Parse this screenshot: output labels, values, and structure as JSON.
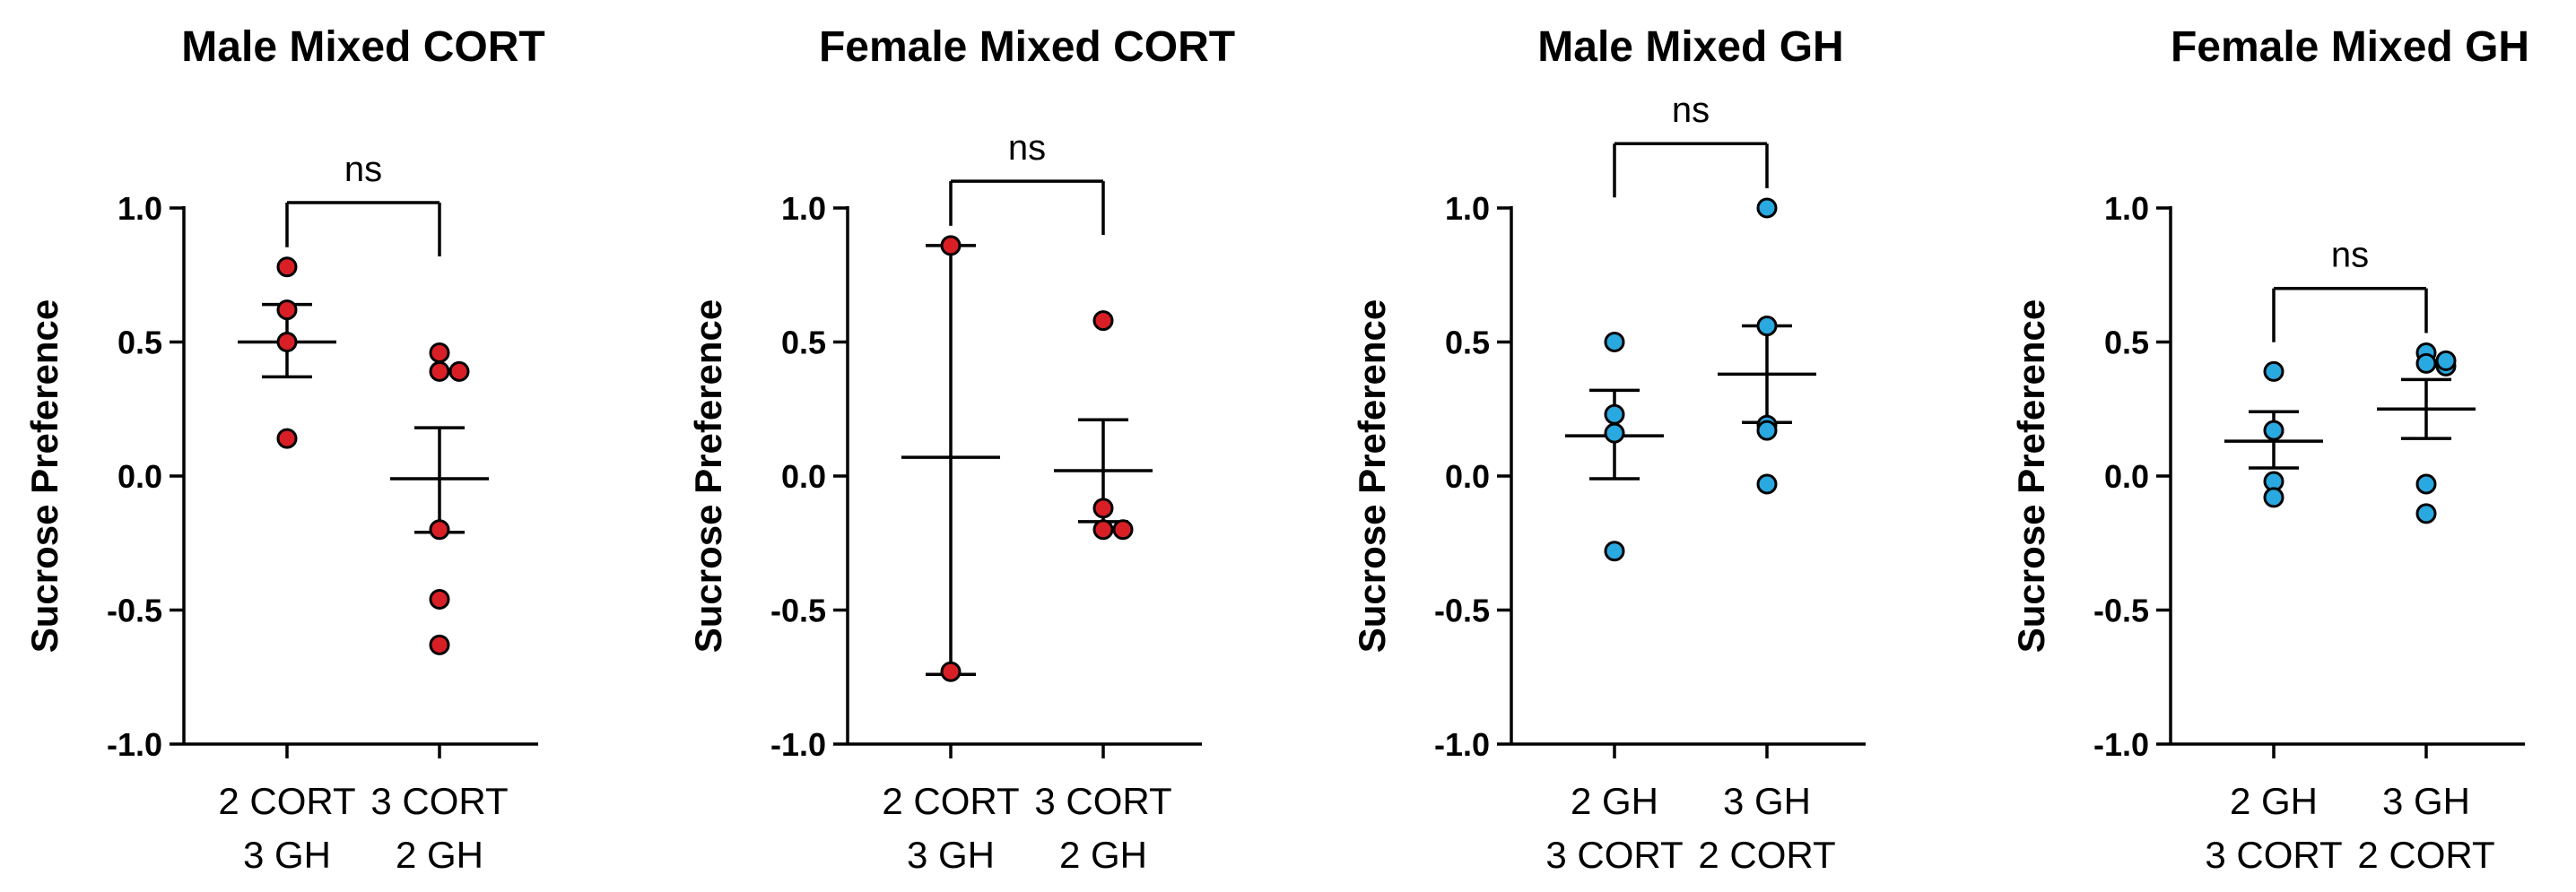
{
  "chart_data": [
    {
      "type": "scatter",
      "title": "Male Mixed CORT",
      "ylabel": "Sucrose Preference",
      "xlabel": "",
      "ylim": [
        -1.0,
        1.0
      ],
      "yticks": [
        "1.0",
        "0.5",
        "0.0",
        "-0.5",
        "-1.0"
      ],
      "ytick_values": [
        1.0,
        0.5,
        0.0,
        -0.5,
        -1.0
      ],
      "point_color": "#d91f26",
      "categories": [
        {
          "line1": "2 CORT",
          "line2": "3 GH",
          "points": [
            0.78,
            0.62,
            0.5,
            0.14
          ],
          "mean": 0.5,
          "sem_low": 0.37,
          "sem_high": 0.64
        },
        {
          "line1": "3 CORT",
          "line2": "2 GH",
          "points": [
            0.46,
            0.39,
            0.39,
            -0.2,
            -0.46,
            -0.63
          ],
          "mean": -0.01,
          "sem_low": -0.21,
          "sem_high": 0.18
        }
      ],
      "comparison": {
        "label": "ns",
        "y": 1.02
      }
    },
    {
      "type": "scatter",
      "title": "Female Mixed CORT",
      "ylabel": "Sucrose Preference",
      "xlabel": "",
      "ylim": [
        -1.0,
        1.0
      ],
      "yticks": [
        "1.0",
        "0.5",
        "0.0",
        "-0.5",
        "-1.0"
      ],
      "ytick_values": [
        1.0,
        0.5,
        0.0,
        -0.5,
        -1.0
      ],
      "point_color": "#d91f26",
      "categories": [
        {
          "line1": "2 CORT",
          "line2": "3 GH",
          "points": [
            0.86,
            -0.73
          ],
          "mean": 0.07,
          "sem_low": -0.74,
          "sem_high": 0.86
        },
        {
          "line1": "3 CORT",
          "line2": "2 GH",
          "points": [
            0.58,
            -0.12,
            -0.2,
            -0.2
          ],
          "mean": 0.02,
          "sem_low": -0.17,
          "sem_high": 0.21
        }
      ],
      "comparison": {
        "label": "ns",
        "y": 1.1
      }
    },
    {
      "type": "scatter",
      "title": "Male Mixed GH",
      "ylabel": "Sucrose Preference",
      "xlabel": "",
      "ylim": [
        -1.0,
        1.0
      ],
      "yticks": [
        "1.0",
        "0.5",
        "0.0",
        "-0.5",
        "-1.0"
      ],
      "ytick_values": [
        1.0,
        0.5,
        0.0,
        -0.5,
        -1.0
      ],
      "point_color": "#2aa8e0",
      "categories": [
        {
          "line1": "2 GH",
          "line2": "3 CORT",
          "points": [
            0.5,
            0.23,
            0.16,
            -0.28
          ],
          "mean": 0.15,
          "sem_low": -0.01,
          "sem_high": 0.32
        },
        {
          "line1": "3 GH",
          "line2": "2 CORT",
          "points": [
            1.0,
            0.56,
            0.19,
            0.17,
            -0.03
          ],
          "mean": 0.38,
          "sem_low": 0.2,
          "sem_high": 0.56
        }
      ],
      "comparison": {
        "label": "ns",
        "y": 1.24
      }
    },
    {
      "type": "scatter",
      "title": "Female Mixed GH",
      "ylabel": "Sucrose Preference",
      "xlabel": "",
      "ylim": [
        -1.0,
        1.0
      ],
      "yticks": [
        "1.0",
        "0.5",
        "0.0",
        "-0.5",
        "-1.0"
      ],
      "ytick_values": [
        1.0,
        0.5,
        0.0,
        -0.5,
        -1.0
      ],
      "point_color": "#2aa8e0",
      "categories": [
        {
          "line1": "2 GH",
          "line2": "3 CORT",
          "points": [
            0.39,
            0.17,
            -0.02,
            -0.08
          ],
          "mean": 0.13,
          "sem_low": 0.03,
          "sem_high": 0.24
        },
        {
          "line1": "3 GH",
          "line2": "2 CORT",
          "points": [
            0.46,
            0.42,
            0.41,
            0.43,
            -0.03,
            -0.14
          ],
          "mean": 0.25,
          "sem_low": 0.14,
          "sem_high": 0.36
        }
      ],
      "comparison": {
        "label": "ns",
        "y": 0.7
      }
    }
  ]
}
